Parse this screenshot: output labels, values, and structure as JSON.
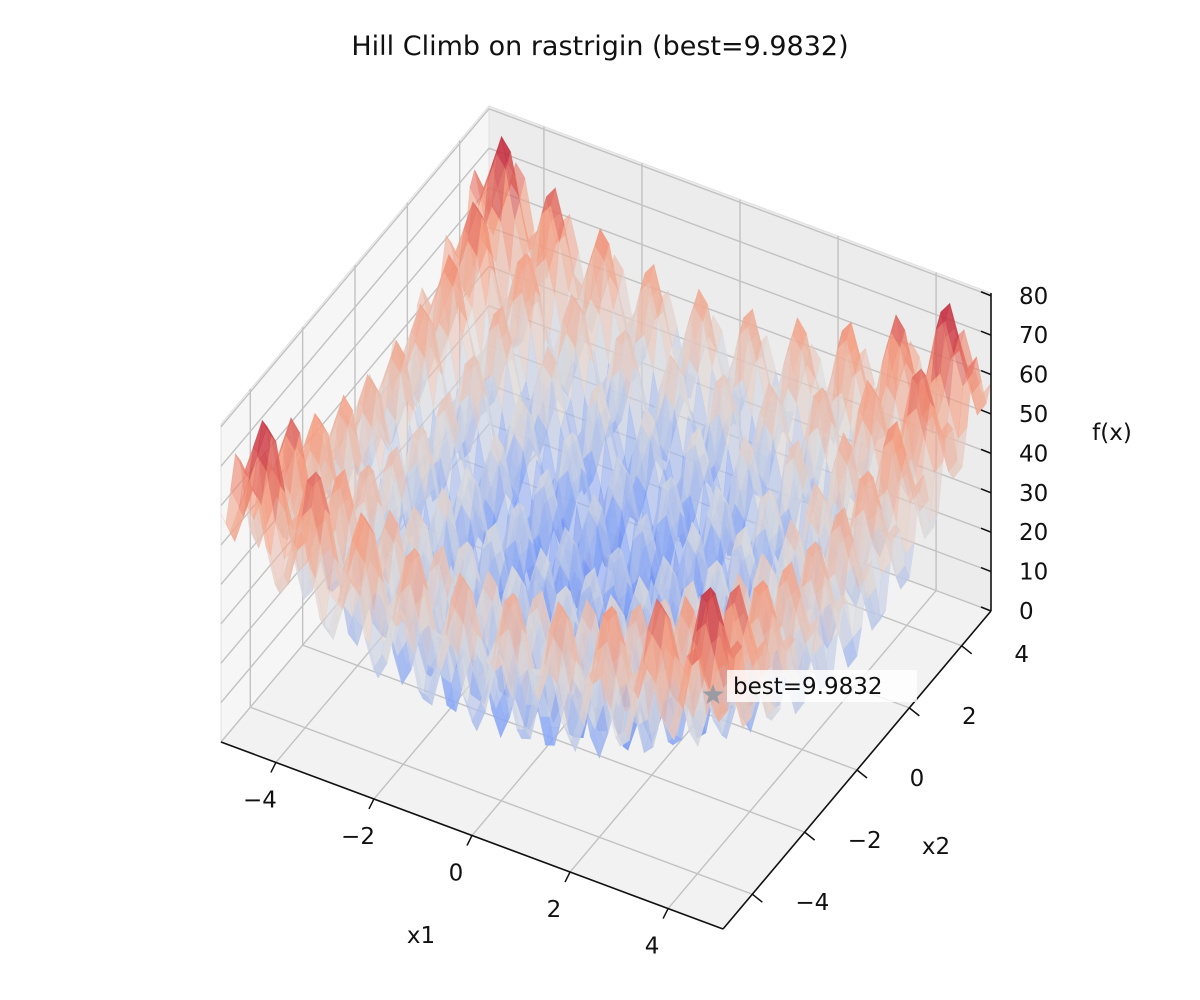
{
  "chart_data": {
    "type": "surface3d",
    "title": "Hill Climb on rastrigin (best=9.9832)",
    "function": "rastrigin",
    "colormap": "coolwarm",
    "xlabel": "x1",
    "ylabel": "x2",
    "zlabel": "f(x)",
    "xlim": [
      -5.12,
      5.12
    ],
    "ylim": [
      -5.12,
      5.12
    ],
    "zlim": [
      0,
      80.7
    ],
    "xticks": [
      -4,
      -2,
      0,
      2,
      4
    ],
    "yticks": [
      -4,
      -2,
      0,
      2,
      4
    ],
    "zticks": [
      0,
      10,
      20,
      30,
      40,
      50,
      60,
      70,
      80
    ],
    "grid": true,
    "best": {
      "value": 9.9832,
      "label": "best=9.9832",
      "marker": "star",
      "color": "#8c96a3"
    }
  }
}
